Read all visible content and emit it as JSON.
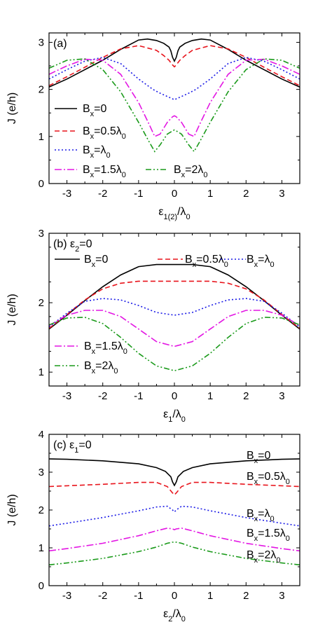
{
  "figure": {
    "ylabel": "J (e/h)"
  },
  "chart_data": [
    {
      "type": "line",
      "panel_label": "(a)",
      "panel_condition": "",
      "xlabel_main": "ε",
      "xlabel_sub": "1(2)",
      "xlabel_tail": "/λ",
      "xlabel_tail_sub": "0",
      "ylabel": "J (e/h)",
      "xlim": [
        -3.5,
        3.5
      ],
      "ylim": [
        0,
        3.2
      ],
      "xticks": [
        -3,
        -2,
        -1,
        0,
        1,
        2,
        3
      ],
      "yticks": [
        0,
        1,
        2,
        3
      ],
      "series": [
        {
          "name": "B_x=0",
          "color": "#000000",
          "dash": "",
          "x": [
            -3.5,
            -3,
            -2.5,
            -2,
            -1.5,
            -1,
            -0.75,
            -0.5,
            -0.3,
            -0.15,
            -0.1,
            -0.05,
            0,
            0.05,
            0.1,
            0.15,
            0.3,
            0.5,
            0.75,
            1,
            1.5,
            2,
            2.5,
            3,
            3.5
          ],
          "y": [
            2.05,
            2.22,
            2.42,
            2.62,
            2.85,
            3.05,
            3.07,
            3.04,
            2.98,
            2.9,
            2.82,
            2.68,
            2.6,
            2.68,
            2.82,
            2.9,
            2.98,
            3.04,
            3.07,
            3.05,
            2.85,
            2.62,
            2.42,
            2.22,
            2.05
          ]
        },
        {
          "name": "B_x=0.5λ_0",
          "color": "#e8141c",
          "dash": "7,4",
          "x": [
            -3.5,
            -3,
            -2.5,
            -2,
            -1.5,
            -1,
            -0.5,
            -0.3,
            -0.15,
            -0.05,
            0,
            0.05,
            0.15,
            0.3,
            0.5,
            1,
            1.5,
            2,
            2.5,
            3,
            3.5
          ],
          "y": [
            2.08,
            2.27,
            2.47,
            2.68,
            2.86,
            2.93,
            2.83,
            2.72,
            2.62,
            2.52,
            2.48,
            2.52,
            2.62,
            2.72,
            2.83,
            2.93,
            2.86,
            2.68,
            2.47,
            2.27,
            2.08
          ]
        },
        {
          "name": "B_x=λ_0",
          "color": "#1a1ae6",
          "dash": "2,3",
          "x": [
            -3.5,
            -3,
            -2.5,
            -2,
            -1.5,
            -1,
            -0.6,
            -0.4,
            -0.2,
            -0.05,
            0,
            0.05,
            0.2,
            0.4,
            0.6,
            1,
            1.5,
            2,
            2.5,
            3,
            3.5
          ],
          "y": [
            2.22,
            2.42,
            2.6,
            2.68,
            2.55,
            2.22,
            2.0,
            1.92,
            1.85,
            1.8,
            1.78,
            1.8,
            1.85,
            1.92,
            2.0,
            2.22,
            2.55,
            2.68,
            2.6,
            2.42,
            2.22
          ]
        },
        {
          "name": "B_x=1.5λ_0",
          "color": "#e316e3",
          "dash": "10,3,2,3",
          "x": [
            -3.5,
            -3,
            -2.5,
            -2,
            -1.5,
            -1,
            -0.7,
            -0.55,
            -0.4,
            -0.2,
            -0.05,
            0,
            0.05,
            0.2,
            0.4,
            0.55,
            0.7,
            1,
            1.5,
            2,
            2.5,
            3,
            3.5
          ],
          "y": [
            2.32,
            2.5,
            2.64,
            2.62,
            2.32,
            1.72,
            1.25,
            1.0,
            1.05,
            1.3,
            1.42,
            1.44,
            1.42,
            1.3,
            1.05,
            1.0,
            1.25,
            1.72,
            2.32,
            2.62,
            2.64,
            2.5,
            2.32
          ]
        },
        {
          "name": "B_x=2λ_0",
          "color": "#1a9a1a",
          "dash": "8,3,2,3,2,3",
          "x": [
            -3.5,
            -3,
            -2.5,
            -2,
            -1.5,
            -1,
            -0.7,
            -0.55,
            -0.4,
            -0.2,
            -0.05,
            0,
            0.05,
            0.2,
            0.4,
            0.55,
            0.7,
            1,
            1.5,
            2,
            2.5,
            3,
            3.5
          ],
          "y": [
            2.45,
            2.62,
            2.65,
            2.42,
            1.95,
            1.3,
            0.88,
            0.68,
            0.82,
            1.05,
            1.12,
            1.14,
            1.12,
            1.05,
            0.82,
            0.68,
            0.88,
            1.3,
            1.95,
            2.42,
            2.65,
            2.62,
            2.45
          ]
        }
      ],
      "legend": [
        {
          "main": "B",
          "sub": "x",
          "rest": "=0"
        },
        {
          "main": "B",
          "sub": "x",
          "rest": "=0.5λ",
          "sub2": "0"
        },
        {
          "main": "B",
          "sub": "x",
          "rest": "=λ",
          "sub2": "0"
        },
        {
          "main": "B",
          "sub": "x",
          "rest": "=1.5λ",
          "sub2": "0"
        },
        {
          "main": "B",
          "sub": "x",
          "rest": "=2λ",
          "sub2": "0"
        }
      ]
    },
    {
      "type": "line",
      "panel_label": "(b)",
      "panel_condition_main": "ε",
      "panel_condition_sub": "2",
      "panel_condition_rest": "=0",
      "xlabel_main": "ε",
      "xlabel_sub": "1",
      "xlabel_tail": "/λ",
      "xlabel_tail_sub": "0",
      "ylabel": "J (e/h)",
      "xlim": [
        -3.5,
        3.5
      ],
      "ylim": [
        0.8,
        3.0
      ],
      "xticks": [
        -3,
        -2,
        -1,
        0,
        1,
        2,
        3
      ],
      "yticks": [
        1,
        2,
        3
      ],
      "series": [
        {
          "name": "B_x=0",
          "color": "#000000",
          "dash": "",
          "x": [
            -3.5,
            -3,
            -2.5,
            -2,
            -1.5,
            -1,
            -0.5,
            0,
            0.5,
            1,
            1.5,
            2,
            2.5,
            3,
            3.5
          ],
          "y": [
            1.62,
            1.82,
            2.03,
            2.23,
            2.4,
            2.52,
            2.55,
            2.55,
            2.55,
            2.52,
            2.4,
            2.23,
            2.03,
            1.82,
            1.62
          ]
        },
        {
          "name": "B_x=0.5λ_0",
          "color": "#e8141c",
          "dash": "7,4",
          "x": [
            -3.5,
            -3,
            -2.5,
            -2,
            -1.5,
            -1,
            -0.5,
            0,
            0.5,
            1,
            1.5,
            2,
            2.5,
            3,
            3.5
          ],
          "y": [
            1.63,
            1.83,
            2.04,
            2.2,
            2.28,
            2.31,
            2.31,
            2.31,
            2.31,
            2.31,
            2.28,
            2.2,
            2.04,
            1.83,
            1.63
          ]
        },
        {
          "name": "B_x=λ_0",
          "color": "#1a1ae6",
          "dash": "2,3",
          "x": [
            -3.5,
            -3,
            -2.5,
            -2,
            -1.5,
            -1,
            -0.5,
            0,
            0.5,
            1,
            1.5,
            2,
            2.5,
            3,
            3.5
          ],
          "y": [
            1.65,
            1.85,
            2.02,
            2.06,
            2.04,
            1.96,
            1.86,
            1.82,
            1.86,
            1.96,
            2.04,
            2.06,
            2.02,
            1.85,
            1.65
          ]
        },
        {
          "name": "B_x=1.5λ_0",
          "color": "#e316e3",
          "dash": "10,3,2,3",
          "x": [
            -3.5,
            -3,
            -2.5,
            -2,
            -1.5,
            -1,
            -0.5,
            0,
            0.5,
            1,
            1.5,
            2,
            2.5,
            3,
            3.5
          ],
          "y": [
            1.67,
            1.82,
            1.89,
            1.89,
            1.8,
            1.62,
            1.44,
            1.37,
            1.44,
            1.62,
            1.8,
            1.89,
            1.89,
            1.82,
            1.67
          ]
        },
        {
          "name": "B_x=2λ_0",
          "color": "#1a9a1a",
          "dash": "8,3,2,3,2,3",
          "x": [
            -3.5,
            -3,
            -2.5,
            -2,
            -1.5,
            -1,
            -0.5,
            0,
            0.5,
            1,
            1.5,
            2,
            2.5,
            3,
            3.5
          ],
          "y": [
            1.68,
            1.78,
            1.79,
            1.7,
            1.5,
            1.27,
            1.09,
            1.02,
            1.09,
            1.27,
            1.5,
            1.7,
            1.79,
            1.78,
            1.68
          ]
        }
      ],
      "legend": [
        {
          "main": "B",
          "sub": "x",
          "rest": "=0"
        },
        {
          "main": "B",
          "sub": "x",
          "rest": "=0.5λ",
          "sub2": "0"
        },
        {
          "main": "B",
          "sub": "x",
          "rest": "=λ",
          "sub2": "0"
        },
        {
          "main": "B",
          "sub": "x",
          "rest": "=1.5λ",
          "sub2": "0"
        },
        {
          "main": "B",
          "sub": "x",
          "rest": "=2λ",
          "sub2": "0"
        }
      ]
    },
    {
      "type": "line",
      "panel_label": "(c)",
      "panel_condition_main": "ε",
      "panel_condition_sub": "1",
      "panel_condition_rest": "=0",
      "xlabel_main": "ε",
      "xlabel_sub": "2",
      "xlabel_tail": "/λ",
      "xlabel_tail_sub": "0",
      "ylabel": "J (e/h)",
      "xlim": [
        -3.5,
        3.5
      ],
      "ylim": [
        0,
        4.0
      ],
      "xticks": [
        -3,
        -2,
        -1,
        0,
        1,
        2,
        3
      ],
      "yticks": [
        0,
        1,
        2,
        3,
        4
      ],
      "series": [
        {
          "name": "B_x=0",
          "color": "#000000",
          "dash": "",
          "x": [
            -3.5,
            -3,
            -2,
            -1,
            -0.5,
            -0.25,
            -0.1,
            -0.05,
            0,
            0.05,
            0.1,
            0.25,
            0.5,
            1,
            2,
            3,
            3.5
          ],
          "y": [
            3.35,
            3.34,
            3.3,
            3.22,
            3.12,
            3.02,
            2.88,
            2.74,
            2.65,
            2.74,
            2.88,
            3.02,
            3.12,
            3.22,
            3.3,
            3.34,
            3.35
          ]
        },
        {
          "name": "B_x=0.5λ_0",
          "color": "#e8141c",
          "dash": "7,4",
          "x": [
            -3.5,
            -3,
            -2,
            -1,
            -0.5,
            -0.2,
            -0.05,
            0,
            0.05,
            0.2,
            0.5,
            1,
            2,
            3,
            3.5
          ],
          "y": [
            2.62,
            2.64,
            2.68,
            2.73,
            2.73,
            2.62,
            2.45,
            2.4,
            2.45,
            2.62,
            2.73,
            2.73,
            2.68,
            2.64,
            2.62
          ]
        },
        {
          "name": "B_x=λ_0",
          "color": "#1a1ae6",
          "dash": "2,3",
          "x": [
            -3.5,
            -3,
            -2,
            -1,
            -0.5,
            -0.2,
            -0.05,
            0,
            0.05,
            0.2,
            0.5,
            1,
            2,
            3,
            3.5
          ],
          "y": [
            1.58,
            1.65,
            1.8,
            1.98,
            2.08,
            2.1,
            2.0,
            1.95,
            2.0,
            2.1,
            2.08,
            1.98,
            1.8,
            1.65,
            1.58
          ]
        },
        {
          "name": "B_x=1.5λ_0",
          "color": "#e316e3",
          "dash": "10,3,2,3",
          "x": [
            -3.5,
            -3,
            -2,
            -1,
            -0.5,
            -0.2,
            -0.05,
            0,
            0.05,
            0.2,
            0.5,
            1,
            2,
            3,
            3.5
          ],
          "y": [
            0.92,
            0.98,
            1.12,
            1.32,
            1.45,
            1.52,
            1.5,
            1.48,
            1.5,
            1.52,
            1.45,
            1.32,
            1.12,
            0.98,
            0.92
          ]
        },
        {
          "name": "B_x=2λ_0",
          "color": "#1a9a1a",
          "dash": "8,3,2,3,2,3",
          "x": [
            -3.5,
            -3,
            -2,
            -1,
            -0.5,
            -0.2,
            -0.05,
            0,
            0.05,
            0.2,
            0.5,
            1,
            2,
            3,
            3.5
          ],
          "y": [
            0.55,
            0.6,
            0.72,
            0.9,
            1.02,
            1.12,
            1.15,
            1.14,
            1.15,
            1.12,
            1.02,
            0.9,
            0.72,
            0.6,
            0.55
          ]
        }
      ],
      "legend": [
        {
          "main": "B",
          "sub": "x",
          "rest": "=0"
        },
        {
          "main": "B",
          "sub": "x",
          "rest": "=0.5λ",
          "sub2": "0"
        },
        {
          "main": "B",
          "sub": "x",
          "rest": "=λ",
          "sub2": "0"
        },
        {
          "main": "B",
          "sub": "x",
          "rest": "=1.5λ",
          "sub2": "0"
        },
        {
          "main": "B",
          "sub": "x",
          "rest": "=2λ",
          "sub2": "0"
        }
      ]
    }
  ]
}
